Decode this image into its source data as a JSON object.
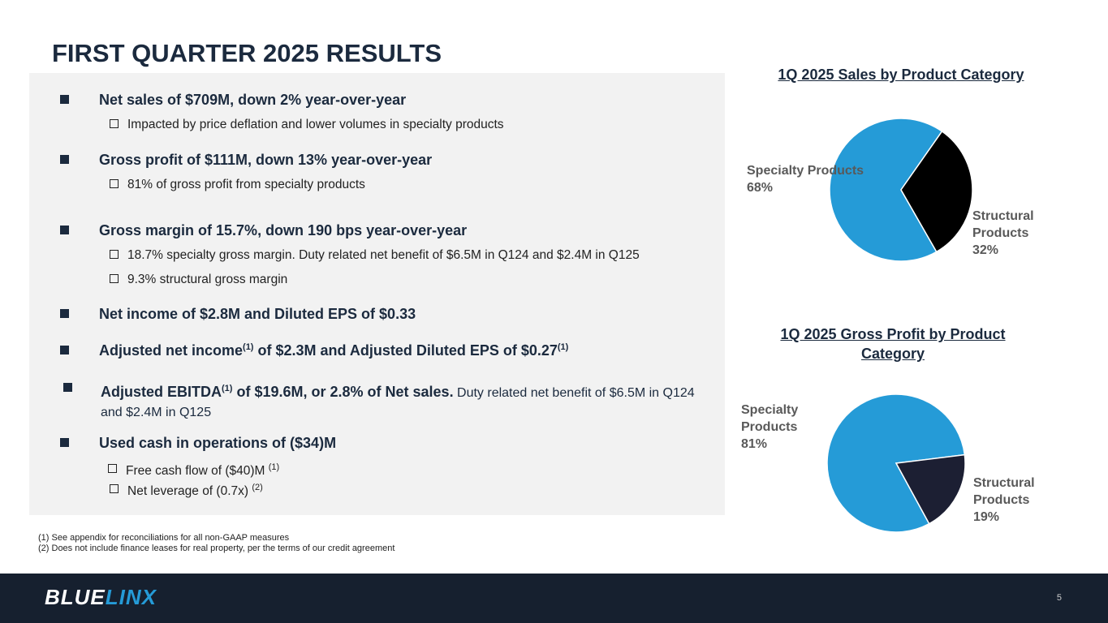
{
  "title": "FIRST QUARTER 2025 RESULTS",
  "bullets": [
    {
      "text": "Net sales of $709M, down 2% year-over-year",
      "subs": [
        "Impacted by price deflation and lower volumes in specialty products"
      ]
    },
    {
      "text": "Gross profit of $111M, down 13% year-over-year",
      "subs": [
        "81% of gross profit from specialty products"
      ]
    },
    {
      "text": "Gross margin of 15.7%, down 190 bps year-over-year",
      "subs": [
        "18.7% specialty gross margin.  Duty related net benefit of $6.5M in Q124 and $2.4M in Q125",
        "9.3% structural gross margin"
      ]
    },
    {
      "text": "Net income of $2.8M and Diluted EPS of $0.33"
    },
    {
      "text_a": "Adjusted net income",
      "sup_a": "(1)",
      "text_b": " of $2.3M and Adjusted Diluted EPS of $0.27",
      "sup_b": "(1)"
    },
    {
      "text_a": "Adjusted EBITDA",
      "sup_a": "(1)",
      "text_b": " of $19.6M, or 2.8% of Net sales.",
      "text_c": " Duty related net benefit of $6.5M in Q124 and $2.4M in Q125"
    },
    {
      "text": "Used cash in operations of ($34)M",
      "subs": [
        "Free cash flow of ($40)M",
        "Net leverage of (0.7x)"
      ],
      "sub_sups": [
        "(1)",
        "(2)"
      ]
    }
  ],
  "footnotes": [
    "(1) See appendix for reconciliations for all non-GAAP measures",
    "(2) Does not include finance leases for real property, per the terms of our credit agreement"
  ],
  "logo": {
    "a": "BLUE",
    "b": "LINX"
  },
  "page_number": "5",
  "chart_data": [
    {
      "type": "pie",
      "title": "1Q 2025 Sales by Product Category",
      "labels": [
        "Specialty Products",
        "Structural Products"
      ],
      "values": [
        68,
        32
      ],
      "display": [
        "68%",
        "32%"
      ],
      "colors": [
        "#259bd7",
        "#000000"
      ]
    },
    {
      "type": "pie",
      "title": "1Q 2025 Gross Profit by Product Category",
      "labels": [
        "Specialty Products",
        "Structural Products"
      ],
      "values": [
        81,
        19
      ],
      "display": [
        "81%",
        "19%"
      ],
      "colors": [
        "#259bd7",
        "#1c1f33"
      ]
    }
  ]
}
